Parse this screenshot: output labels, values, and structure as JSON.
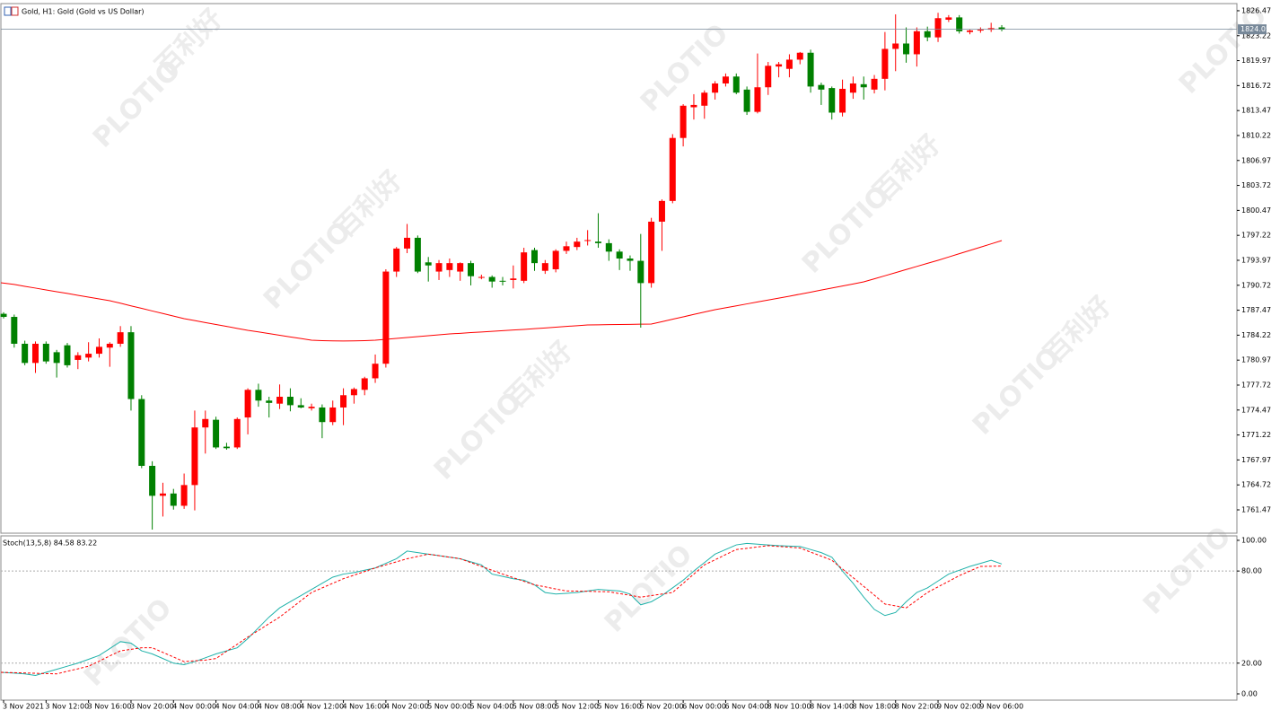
{
  "chart_data": [
    {
      "type": "candlestick",
      "title": "Gold, H1:  Gold (Gold vs US Dollar)",
      "categories": [
        "3 Nov 2021",
        null,
        null,
        null,
        "3 Nov 12:00",
        null,
        null,
        null,
        "3 Nov 16:00",
        null,
        null,
        null,
        "3 Nov 20:00",
        null,
        null,
        null,
        "4 Nov 00:00",
        null,
        null,
        null,
        "4 Nov 04:00",
        null,
        null,
        null,
        "4 Nov 08:00",
        null,
        null,
        null,
        "4 Nov 12:00",
        null,
        null,
        null,
        "4 Nov 16:00",
        null,
        null,
        null,
        "4 Nov 20:00",
        null,
        null,
        null,
        "5 Nov 00:00",
        null,
        null,
        null,
        "5 Nov 04:00",
        null,
        null,
        null,
        "5 Nov 08:00",
        null,
        null,
        null,
        "5 Nov 12:00",
        null,
        null,
        null,
        "5 Nov 16:00",
        null,
        null,
        null,
        "5 Nov 20:00",
        null,
        null,
        null,
        "6 Nov 00:00",
        null,
        null,
        null,
        "6 Nov 04:00",
        null,
        null,
        null,
        "8 Nov 10:00",
        null,
        null,
        null,
        "8 Nov 14:00",
        null,
        null,
        null,
        "8 Nov 18:00",
        null,
        null,
        null,
        "8 Nov 22:00",
        null,
        null,
        null,
        "9 Nov 02:00",
        null,
        null,
        null,
        "9 Nov 06:00",
        null,
        null
      ],
      "open": [
        1787.0,
        1786.6,
        1783.1,
        1780.6,
        1783.1,
        1782.0,
        1782.9,
        1781.0,
        1781.3,
        1781.8,
        1782.6,
        1783.1,
        1784.6,
        1775.9,
        1767.2,
        1763.3,
        1763.6,
        1762.0,
        1764.7,
        1772.2,
        1773.2,
        1769.7,
        1769.6,
        1773.5,
        1777.1,
        1775.7,
        1775.3,
        1776.2,
        1775.1,
        1774.7,
        1774.8,
        1772.9,
        1774.8,
        1776.4,
        1777.1,
        1778.6,
        1780.5,
        1792.5,
        1795.5,
        1796.9,
        1793.7,
        1792.5,
        1792.7,
        1792.5,
        1793.6,
        1791.8,
        1791.8,
        1791.3,
        1791.4,
        1791.3,
        1795.3,
        1792.6,
        1792.8,
        1795.2,
        1795.7,
        1796.5,
        1796.4,
        1796.2,
        1795.1,
        1794.2,
        1793.9,
        1791.0,
        1799.0,
        1801.7,
        1809.9,
        1813.9,
        1814.1,
        1815.8,
        1817.0,
        1817.9,
        1816.2,
        1813.3,
        1816.5,
        1819.2,
        1818.9,
        1820.1,
        1821.0,
        1816.8,
        1816.4,
        1813.2,
        1815.8,
        1816.9,
        1816.2,
        1817.6,
        1821.5,
        1822.2,
        1820.8,
        1823.8,
        1823.0,
        1825.3,
        1825.6,
        1823.7,
        1823.9,
        1824.0,
        1824.3
      ],
      "high": [
        1787.2,
        1786.9,
        1783.5,
        1783.4,
        1783.4,
        1782.3,
        1783.2,
        1782.0,
        1783.3,
        1783.8,
        1783.3,
        1785.4,
        1785.4,
        1776.4,
        1767.8,
        1765.0,
        1764.2,
        1766.2,
        1774.4,
        1774.4,
        1773.6,
        1770.2,
        1773.5,
        1777.3,
        1777.9,
        1776.2,
        1777.8,
        1777.3,
        1776.0,
        1775.3,
        1775.2,
        1775.7,
        1777.3,
        1777.4,
        1778.8,
        1781.7,
        1792.8,
        1795.7,
        1798.7,
        1797.2,
        1794.4,
        1794.0,
        1794.2,
        1793.7,
        1793.9,
        1792.1,
        1792.0,
        1791.8,
        1793.3,
        1795.6,
        1795.6,
        1794.0,
        1795.4,
        1796.4,
        1796.9,
        1797.9,
        1800.1,
        1796.7,
        1795.4,
        1794.6,
        1797.4,
        1799.5,
        1801.9,
        1810.4,
        1814.3,
        1815.6,
        1816.1,
        1817.3,
        1818.3,
        1818.3,
        1816.6,
        1820.9,
        1819.8,
        1819.8,
        1820.8,
        1821.1,
        1821.4,
        1817.1,
        1816.6,
        1817.5,
        1817.9,
        1817.9,
        1818.1,
        1823.7,
        1826.0,
        1824.3,
        1824.3,
        1824.4,
        1826.2,
        1825.9,
        1825.9,
        1824.0,
        1824.3,
        1824.9,
        1824.6
      ],
      "low": [
        1786.4,
        1782.6,
        1780.3,
        1779.3,
        1780.5,
        1778.7,
        1780.0,
        1779.8,
        1780.8,
        1781.3,
        1780.1,
        1782.7,
        1774.4,
        1766.9,
        1758.9,
        1760.6,
        1761.5,
        1761.6,
        1761.4,
        1768.8,
        1769.4,
        1769.3,
        1769.4,
        1771.3,
        1774.9,
        1773.5,
        1774.6,
        1774.3,
        1774.7,
        1774.4,
        1770.8,
        1772.5,
        1772.5,
        1775.3,
        1776.4,
        1778.0,
        1780.0,
        1791.8,
        1794.9,
        1792.3,
        1791.2,
        1791.4,
        1791.8,
        1791.3,
        1790.7,
        1791.5,
        1790.4,
        1790.7,
        1790.3,
        1791.0,
        1792.6,
        1792.2,
        1792.4,
        1794.8,
        1795.3,
        1795.9,
        1795.6,
        1793.9,
        1792.7,
        1792.6,
        1785.2,
        1790.4,
        1795.2,
        1801.4,
        1808.8,
        1812.3,
        1812.4,
        1814.9,
        1816.6,
        1815.6,
        1812.9,
        1813.1,
        1815.5,
        1817.8,
        1817.8,
        1819.5,
        1815.8,
        1814.2,
        1812.3,
        1812.7,
        1815.0,
        1814.9,
        1815.7,
        1816.1,
        1818.6,
        1819.7,
        1819.2,
        1822.5,
        1822.4,
        1825.0,
        1823.5,
        1823.4,
        1823.6,
        1823.7,
        1823.8
      ],
      "close": [
        1786.6,
        1783.1,
        1780.6,
        1783.1,
        1780.8,
        1780.6,
        1780.3,
        1781.6,
        1781.8,
        1782.7,
        1783.1,
        1784.6,
        1775.9,
        1767.2,
        1763.3,
        1763.6,
        1762.0,
        1764.7,
        1772.2,
        1773.3,
        1769.6,
        1769.5,
        1773.3,
        1777.1,
        1775.7,
        1775.4,
        1776.2,
        1775.1,
        1774.8,
        1774.9,
        1772.9,
        1774.8,
        1776.4,
        1777.2,
        1778.6,
        1780.5,
        1792.5,
        1795.5,
        1796.9,
        1792.5,
        1793.3,
        1793.6,
        1793.6,
        1793.6,
        1791.9,
        1791.8,
        1791.2,
        1791.2,
        1791.6,
        1795.0,
        1793.6,
        1793.6,
        1795.2,
        1795.8,
        1796.4,
        1796.6,
        1796.2,
        1795.1,
        1794.2,
        1793.9,
        1791.0,
        1799.0,
        1801.7,
        1809.9,
        1814.1,
        1814.2,
        1815.8,
        1817.0,
        1817.9,
        1815.8,
        1813.3,
        1816.5,
        1819.3,
        1819.5,
        1820.1,
        1821.0,
        1816.6,
        1816.2,
        1813.2,
        1816.3,
        1817.0,
        1816.5,
        1817.6,
        1821.5,
        1822.2,
        1820.8,
        1823.8,
        1823.0,
        1825.5,
        1825.6,
        1823.8,
        1823.9,
        1824.0,
        1824.2,
        1824.05
      ],
      "up_color": "#ff0000",
      "down_color": "#008000",
      "overlay": {
        "color": "#ff0000",
        "values": [
          1791.05,
          1790.82,
          1790.58,
          1790.35,
          1790.11,
          1789.88,
          1789.65,
          1789.41,
          1789.18,
          1788.94,
          1788.71,
          1788.38,
          1788.04,
          1787.71,
          1787.37,
          1787.04,
          1786.7,
          1786.37,
          1786.12,
          1785.86,
          1785.61,
          1785.36,
          1785.1,
          1784.85,
          1784.64,
          1784.42,
          1784.21,
          1783.99,
          1783.78,
          1783.56,
          1783.5,
          1783.47,
          1783.46,
          1783.47,
          1783.5,
          1783.56,
          1783.68,
          1783.79,
          1783.91,
          1784.03,
          1784.15,
          1784.26,
          1784.38,
          1784.46,
          1784.55,
          1784.63,
          1784.72,
          1784.8,
          1784.89,
          1784.97,
          1785.07,
          1785.16,
          1785.26,
          1785.36,
          1785.45,
          1785.55,
          1785.57,
          1785.59,
          1785.61,
          1785.63,
          1785.65,
          1785.67,
          1785.98,
          1786.29,
          1786.6,
          1786.92,
          1787.23,
          1787.54,
          1787.79,
          1788.04,
          1788.29,
          1788.54,
          1788.79,
          1789.04,
          1789.29,
          1789.56,
          1789.82,
          1790.09,
          1790.36,
          1790.62,
          1790.89,
          1791.16,
          1791.56,
          1791.96,
          1792.36,
          1792.77,
          1793.17,
          1793.57,
          1793.97,
          1794.4,
          1794.83,
          1795.25,
          1795.68,
          1796.11,
          1796.54
        ]
      },
      "last_price": 1824.05,
      "last_price_color": "#778899",
      "ylim": [
        1758.43,
        1827.4
      ],
      "yticks": [
        1826.47,
        1823.22,
        1819.97,
        1816.72,
        1813.47,
        1810.22,
        1806.97,
        1803.72,
        1800.47,
        1797.22,
        1793.97,
        1790.72,
        1787.47,
        1784.22,
        1780.97,
        1777.72,
        1774.47,
        1771.22,
        1767.97,
        1764.72,
        1761.47
      ],
      "grid": false
    },
    {
      "type": "line",
      "title": "Stoch(13,5,8) 84.58 83.22",
      "series": [
        {
          "color": "#20b2aa",
          "dashed": false,
          "values": [
            14.0,
            13.5,
            13.0,
            12.0,
            14.0,
            16.0,
            18.0,
            20.0,
            22.5,
            25.0,
            29.5,
            34.0,
            33.0,
            28.0,
            26.0,
            23.0,
            20.0,
            19.0,
            21.0,
            23.5,
            26.0,
            28.0,
            30.0,
            36.0,
            43.0,
            50.0,
            56.0,
            60.0,
            64.0,
            68.0,
            72.0,
            76.0,
            78.0,
            79.0,
            80.5,
            82.0,
            85.0,
            88.0,
            93.0,
            92.0,
            91.0,
            90.0,
            89.0,
            88.0,
            86.0,
            84.0,
            78.0,
            76.5,
            75.0,
            74.0,
            71.0,
            66.0,
            65.0,
            65.5,
            66.0,
            67.0,
            68.0,
            67.5,
            67.0,
            65.0,
            58.0,
            60.0,
            64.0,
            69.0,
            74.0,
            80.0,
            85.5,
            91.0,
            94.0,
            97.0,
            98.0,
            97.5,
            97.0,
            96.5,
            96.2,
            96.0,
            94.0,
            92.0,
            89.0,
            80.0,
            72.0,
            63.0,
            55.0,
            51.0,
            53.0,
            60.0,
            66.0,
            69.0,
            73.5,
            78.0,
            80.5,
            83.0,
            85.0,
            87.0,
            84.58
          ]
        },
        {
          "color": "#ff0000",
          "dashed": true,
          "values": [
            14,
            13.8,
            13.6,
            13.4,
            13.2,
            13,
            14.7,
            16.3,
            18,
            21.3,
            24.7,
            28,
            29,
            30,
            30,
            27,
            24,
            21,
            21.5,
            22,
            23,
            27.7,
            32.3,
            37,
            41.3,
            45.7,
            50,
            55.3,
            60.7,
            66,
            69,
            72,
            75,
            77.3,
            79.7,
            82,
            84,
            86,
            88,
            89.5,
            91,
            90,
            89,
            88,
            85.5,
            83,
            80.5,
            78,
            75.7,
            73.3,
            71,
            69.7,
            68.3,
            67,
            66.9,
            66.8,
            66.6,
            66.5,
            65.3,
            64.2,
            63,
            64,
            65,
            66,
            72,
            78,
            84,
            87.3,
            90.7,
            94,
            94.8,
            95.7,
            96.5,
            96,
            95.5,
            95,
            92.3,
            89.7,
            87,
            81.3,
            75.7,
            70,
            64.3,
            58.5,
            57.3,
            56,
            61,
            66,
            69.7,
            73.3,
            77,
            80,
            83,
            83.1,
            83.22
          ]
        }
      ],
      "levels": [
        80,
        20
      ],
      "ylim": [
        -4.1,
        102.3
      ],
      "yticks": [
        {
          "value": 100,
          "label": "100.00"
        },
        {
          "value": 80,
          "label": "80.00"
        },
        {
          "value": 20,
          "label": "20.00"
        },
        {
          "value": 0,
          "label": "0.00"
        }
      ]
    }
  ],
  "watermark": {
    "brand": "PLOTIO",
    "chinese": "百利好"
  }
}
